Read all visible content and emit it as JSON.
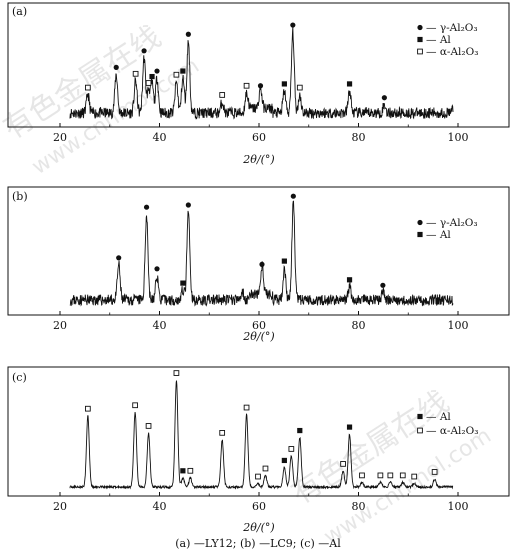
{
  "caption": "(a) —LY12; (b) —LC9; (c) —Al",
  "watermarks": [
    "有色金属在线",
    "www.cnnmol.com"
  ],
  "chart_data": [
    {
      "type": "line",
      "panel_label": "(a)",
      "xlabel": "2θ/(°)",
      "xlim": [
        20,
        100
      ],
      "xticks": [
        "20",
        "40",
        "60",
        "80",
        "100"
      ],
      "legend": [
        {
          "marker": "circle",
          "label": "γ-Al₂O₃"
        },
        {
          "marker": "square",
          "label": "Al"
        },
        {
          "marker": "open-square",
          "label": "α-Al₂O₃"
        }
      ],
      "legend_position": "top-right",
      "baseline_noise": 0.06,
      "peaks": [
        {
          "x": 25.6,
          "h": 0.2,
          "phase": "open-square"
        },
        {
          "x": 31.3,
          "h": 0.42,
          "phase": "circle"
        },
        {
          "x": 35.2,
          "h": 0.35,
          "phase": "open-square"
        },
        {
          "x": 36.9,
          "h": 0.6,
          "phase": "circle"
        },
        {
          "x": 37.8,
          "h": 0.25,
          "phase": "open-square"
        },
        {
          "x": 38.5,
          "h": 0.32,
          "phase": "square"
        },
        {
          "x": 39.5,
          "h": 0.38,
          "phase": "circle"
        },
        {
          "x": 43.4,
          "h": 0.34,
          "phase": "open-square"
        },
        {
          "x": 44.7,
          "h": 0.38,
          "phase": "square"
        },
        {
          "x": 45.8,
          "h": 0.78,
          "phase": "circle"
        },
        {
          "x": 52.6,
          "h": 0.12,
          "phase": "open-square"
        },
        {
          "x": 57.5,
          "h": 0.22,
          "phase": "open-square"
        },
        {
          "x": 60.3,
          "h": 0.22,
          "phase": "circle"
        },
        {
          "x": 65.1,
          "h": 0.24,
          "phase": "square"
        },
        {
          "x": 66.8,
          "h": 0.88,
          "phase": "circle"
        },
        {
          "x": 68.2,
          "h": 0.2,
          "phase": "open-square"
        },
        {
          "x": 78.2,
          "h": 0.24,
          "phase": "square"
        },
        {
          "x": 85.2,
          "h": 0.09,
          "phase": "circle"
        },
        {
          "x": 99.0,
          "h": 0.05,
          "phase": ""
        }
      ]
    },
    {
      "type": "line",
      "panel_label": "(b)",
      "xlabel": "2θ/(°)",
      "xlim": [
        20,
        100
      ],
      "xticks": [
        "20",
        "40",
        "60",
        "80",
        "100"
      ],
      "legend": [
        {
          "marker": "circle",
          "label": "γ-Al₂O₃"
        },
        {
          "marker": "square",
          "label": "Al"
        }
      ],
      "legend_position": "top-right",
      "baseline_noise": 0.05,
      "peaks": [
        {
          "x": 31.8,
          "h": 0.32,
          "phase": "circle"
        },
        {
          "x": 37.4,
          "h": 0.78,
          "phase": "circle"
        },
        {
          "x": 39.5,
          "h": 0.22,
          "phase": "circle"
        },
        {
          "x": 44.7,
          "h": 0.09,
          "phase": "square"
        },
        {
          "x": 45.8,
          "h": 0.8,
          "phase": "circle"
        },
        {
          "x": 56.7,
          "h": 0.07,
          "phase": ""
        },
        {
          "x": 60.6,
          "h": 0.26,
          "phase": "circle"
        },
        {
          "x": 65.1,
          "h": 0.29,
          "phase": "square"
        },
        {
          "x": 66.9,
          "h": 0.88,
          "phase": "circle"
        },
        {
          "x": 78.2,
          "h": 0.12,
          "phase": "square"
        },
        {
          "x": 84.9,
          "h": 0.07,
          "phase": "circle"
        }
      ]
    },
    {
      "type": "line",
      "panel_label": "(c)",
      "xlabel": "2θ/(°)",
      "xlim": [
        20,
        100
      ],
      "xticks": [
        "20",
        "40",
        "60",
        "80",
        "100"
      ],
      "legend": [
        {
          "marker": "square",
          "label": "Al"
        },
        {
          "marker": "open-square",
          "label": "α-Al₂O₃"
        }
      ],
      "legend_position": "right",
      "baseline_noise": 0.01,
      "peaks": [
        {
          "x": 25.6,
          "h": 0.62,
          "phase": "open-square"
        },
        {
          "x": 35.1,
          "h": 0.65,
          "phase": "open-square"
        },
        {
          "x": 37.8,
          "h": 0.47,
          "phase": "open-square"
        },
        {
          "x": 43.4,
          "h": 0.93,
          "phase": "open-square"
        },
        {
          "x": 44.7,
          "h": 0.08,
          "phase": "square"
        },
        {
          "x": 46.2,
          "h": 0.08,
          "phase": "open-square"
        },
        {
          "x": 52.6,
          "h": 0.41,
          "phase": "open-square"
        },
        {
          "x": 57.5,
          "h": 0.63,
          "phase": "open-square"
        },
        {
          "x": 59.8,
          "h": 0.03,
          "phase": "open-square"
        },
        {
          "x": 61.3,
          "h": 0.1,
          "phase": "open-square"
        },
        {
          "x": 65.1,
          "h": 0.17,
          "phase": "square"
        },
        {
          "x": 66.5,
          "h": 0.27,
          "phase": "open-square"
        },
        {
          "x": 68.2,
          "h": 0.43,
          "phase": "square"
        },
        {
          "x": 76.9,
          "h": 0.14,
          "phase": "open-square"
        },
        {
          "x": 78.2,
          "h": 0.46,
          "phase": "square"
        },
        {
          "x": 80.7,
          "h": 0.04,
          "phase": "open-square"
        },
        {
          "x": 84.4,
          "h": 0.04,
          "phase": "open-square"
        },
        {
          "x": 86.4,
          "h": 0.04,
          "phase": "open-square"
        },
        {
          "x": 88.9,
          "h": 0.04,
          "phase": "open-square"
        },
        {
          "x": 91.2,
          "h": 0.03,
          "phase": "open-square"
        },
        {
          "x": 95.3,
          "h": 0.07,
          "phase": "open-square"
        }
      ]
    }
  ]
}
